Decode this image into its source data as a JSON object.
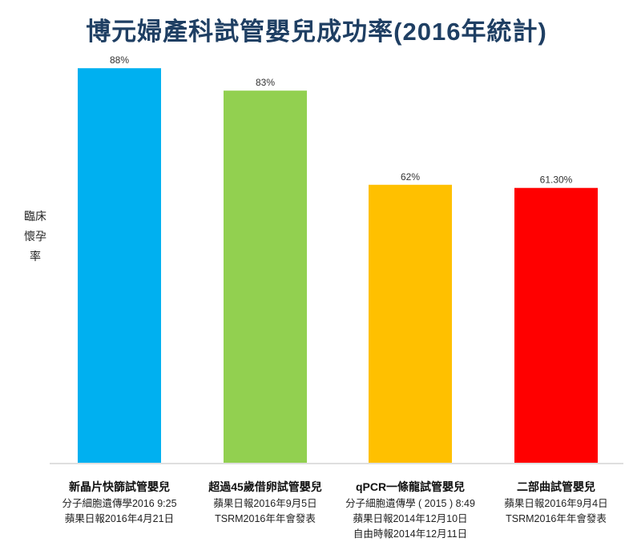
{
  "chart_data": {
    "type": "bar",
    "title": "博元婦產科試管嬰兒成功率(2016年統計)",
    "ylabel": "臨床懷孕率",
    "ylim": [
      0,
      100
    ],
    "grid": false,
    "legend": "none",
    "categories": [
      "新晶片快篩試管嬰兒",
      "超過45歲借卵試管嬰兒",
      "qPCR一條龍試管嬰兒",
      "二部曲試管嬰兒"
    ],
    "values": [
      88,
      83,
      62,
      61.3
    ],
    "data_labels": [
      "88%",
      "83%",
      "62%",
      "61.30%"
    ],
    "colors": [
      "#00b0f0",
      "#92d050",
      "#ffc000",
      "#ff0000"
    ],
    "category_notes": [
      [
        "分子細胞遺傳學2016 9:25",
        "蘋果日報2016年4月21日"
      ],
      [
        "蘋果日報2016年9月5日",
        "TSRM2016年年會發表"
      ],
      [
        "分子細胞遺傳學 ( 2015 ) 8:49",
        "蘋果日報2014年12月10日",
        "自由時報2014年12月11日"
      ],
      [
        "蘋果日報2016年9月4日",
        "TSRM2016年年會發表"
      ]
    ]
  }
}
